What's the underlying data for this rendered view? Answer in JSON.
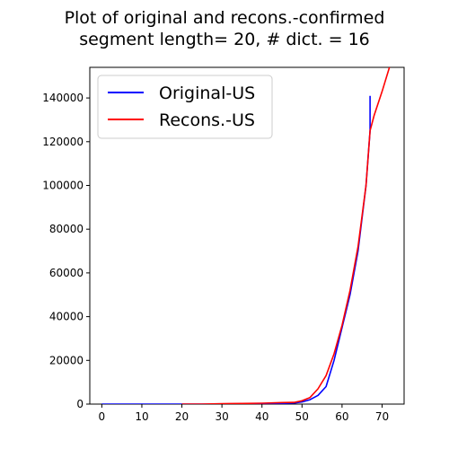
{
  "chart_data": {
    "type": "line",
    "title_line1": "Plot of original and recons.-confirmed",
    "title_line2": "segment length= 20, # dict. = 16",
    "xlabel": "",
    "ylabel": "",
    "xlim": [
      -3,
      75.5
    ],
    "ylim": [
      0,
      154000
    ],
    "xticks": [
      0,
      10,
      20,
      30,
      40,
      50,
      60,
      70
    ],
    "yticks": [
      0,
      20000,
      40000,
      60000,
      80000,
      100000,
      120000,
      140000
    ],
    "grid": false,
    "legend_position": "top-left",
    "series": [
      {
        "name": "Original-US",
        "color": "#0000ff",
        "x": [
          0,
          5,
          10,
          15,
          20,
          25,
          30,
          35,
          40,
          45,
          48,
          50,
          52,
          54,
          56,
          58,
          60,
          62,
          64,
          66,
          67,
          67
        ],
        "y": [
          0,
          0,
          0,
          0,
          0,
          0,
          0,
          50,
          100,
          300,
          500,
          1000,
          2000,
          4000,
          8000,
          20000,
          35000,
          50000,
          70000,
          100000,
          125000,
          141000
        ]
      },
      {
        "name": "Recons.-US",
        "color": "#ff0000",
        "x": [
          20,
          25,
          30,
          35,
          40,
          45,
          48,
          50,
          52,
          54,
          56,
          58,
          60,
          62,
          64,
          66,
          67,
          68,
          70,
          72
        ],
        "y": [
          0,
          0,
          200,
          300,
          400,
          700,
          800,
          1500,
          3000,
          7000,
          13000,
          23000,
          36000,
          52000,
          72000,
          100000,
          125000,
          132000,
          143000,
          155000
        ]
      }
    ]
  }
}
